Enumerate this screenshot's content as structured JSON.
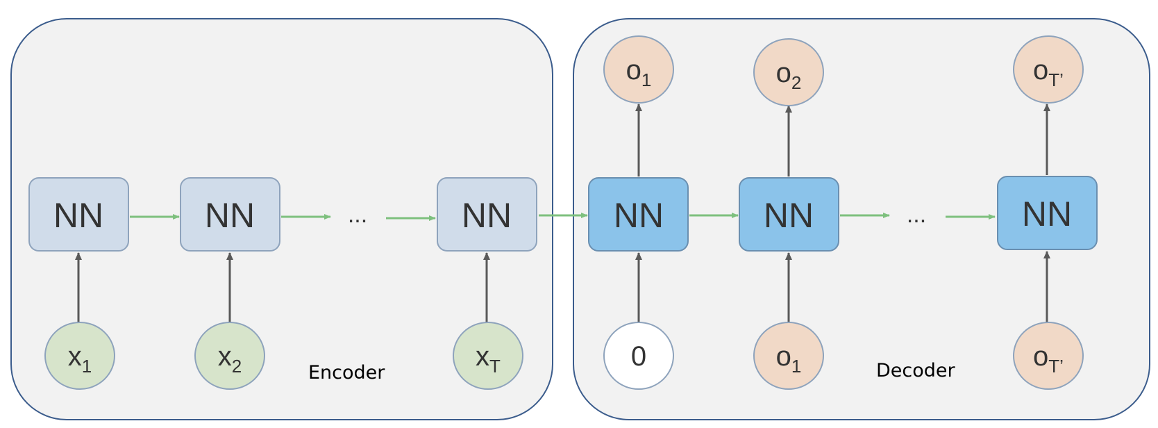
{
  "colors": {
    "panel_fill": "#f2f2f2",
    "panel_stroke": "#3b5c8c",
    "encoder_nn_fill": "#d0dcea",
    "encoder_nn_stroke": "#8ea3bc",
    "decoder_nn_fill": "#8bc3ea",
    "decoder_nn_stroke": "#6a8fb0",
    "input_node_fill": "#d7e4cb",
    "output_node_fill": "#f1d9c7",
    "zero_node_fill": "#ffffff",
    "node_stroke": "#8ea3bc",
    "recurrent_arrow": "#7ec07e",
    "vertical_arrow": "#595959"
  },
  "encoder": {
    "caption": "Encoder",
    "nn_label": "NN",
    "ellipsis": "...",
    "inputs": [
      {
        "base": "x",
        "sub": "1"
      },
      {
        "base": "x",
        "sub": "2"
      },
      {
        "base": "x",
        "sub": "T"
      }
    ]
  },
  "decoder": {
    "caption": "Decoder",
    "nn_label": "NN",
    "ellipsis": "...",
    "inputs": [
      {
        "base": "0",
        "sub": ""
      },
      {
        "base": "o",
        "sub": "1"
      },
      {
        "base": "o",
        "sub": "T’"
      }
    ],
    "outputs": [
      {
        "base": "o",
        "sub": "1"
      },
      {
        "base": "o",
        "sub": "2"
      },
      {
        "base": "o",
        "sub": "T’"
      }
    ]
  }
}
